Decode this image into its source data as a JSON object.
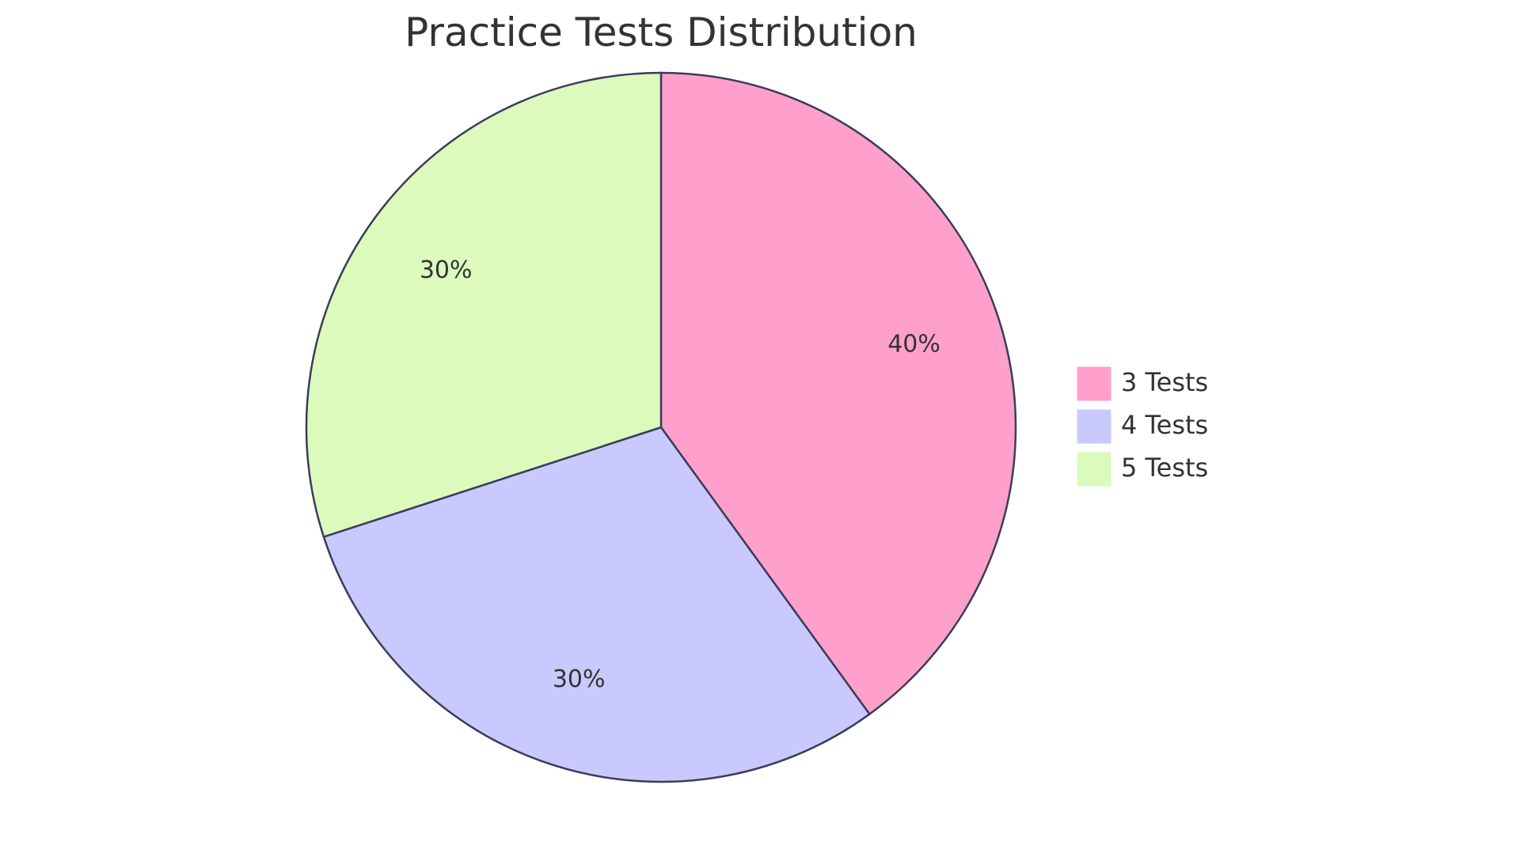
{
  "chart_data": {
    "type": "pie",
    "title": "Practice Tests Distribution",
    "categories": [
      "3 Tests",
      "4 Tests",
      "5 Tests"
    ],
    "values": [
      40,
      30,
      30
    ],
    "value_labels": [
      "40%",
      "30%",
      "30%"
    ],
    "colors": [
      "#ffa0cc",
      "#c9c9ff",
      "#dbfabc"
    ],
    "stroke_color": "#3c3c5a",
    "legend_position": "right",
    "start_angle": "top",
    "direction": "clockwise"
  }
}
